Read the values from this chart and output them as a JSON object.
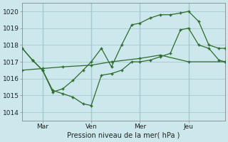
{
  "xlabel": "Pression niveau de la mer( hPa )",
  "bg_color": "#cce8ec",
  "grid_color": "#aacdd4",
  "line_color": "#2d6b2d",
  "vline_color": "#3a7a3a",
  "xlim": [
    0,
    100
  ],
  "ylim": [
    1013.5,
    1020.5
  ],
  "yticks": [
    1014,
    1015,
    1016,
    1017,
    1018,
    1019,
    1020
  ],
  "xtick_positions": [
    10,
    34,
    58,
    82
  ],
  "xtick_labels": [
    "Mar",
    "Ven",
    "Mer",
    "Jeu"
  ],
  "vlines": [
    10,
    34,
    58,
    82
  ],
  "line1_x": [
    0,
    5,
    10,
    15,
    20,
    25,
    30,
    34,
    39,
    44,
    49,
    54,
    58,
    63,
    68,
    73,
    78,
    82,
    87,
    92,
    97,
    100
  ],
  "line1_y": [
    1017.8,
    1017.1,
    1016.5,
    1015.3,
    1015.1,
    1014.9,
    1014.5,
    1014.4,
    1016.2,
    1016.3,
    1016.5,
    1017.0,
    1017.0,
    1017.1,
    1017.3,
    1017.5,
    1018.9,
    1019.0,
    1018.0,
    1017.8,
    1017.1,
    1017.0
  ],
  "line2_x": [
    0,
    5,
    10,
    15,
    20,
    25,
    30,
    34,
    39,
    44,
    49,
    54,
    58,
    63,
    68,
    73,
    78,
    82,
    87,
    92,
    97,
    100
  ],
  "line2_y": [
    1017.8,
    1017.1,
    1016.5,
    1015.2,
    1015.4,
    1015.9,
    1016.5,
    1017.0,
    1017.8,
    1016.7,
    1018.0,
    1019.2,
    1019.3,
    1019.6,
    1019.8,
    1019.8,
    1019.9,
    1020.0,
    1019.4,
    1018.0,
    1017.8,
    1017.8
  ],
  "line3_x": [
    0,
    10,
    20,
    34,
    44,
    58,
    68,
    82,
    100
  ],
  "line3_y": [
    1016.5,
    1016.6,
    1016.7,
    1016.8,
    1017.0,
    1017.2,
    1017.4,
    1017.0,
    1017.0
  ]
}
